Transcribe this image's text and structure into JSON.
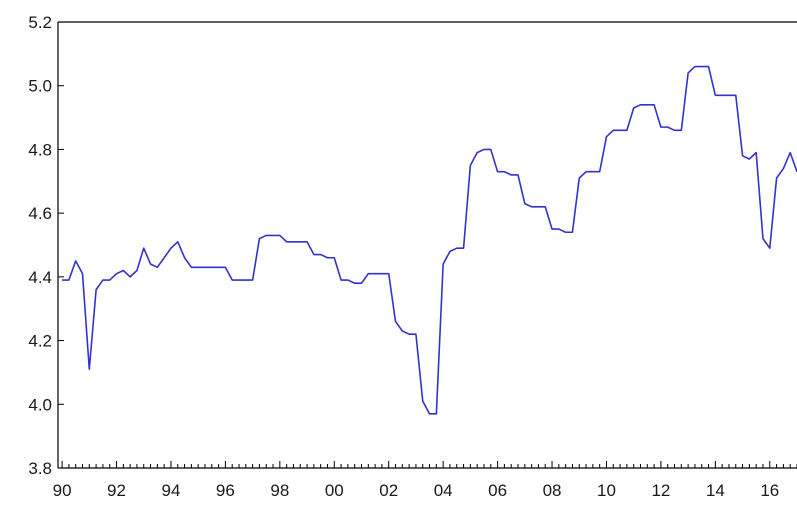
{
  "chart_data": {
    "type": "line",
    "title": "",
    "xlabel": "",
    "ylabel": "",
    "xlim": [
      1989.85,
      2017.0
    ],
    "ylim": [
      3.8,
      5.2
    ],
    "grid": false,
    "legend": "none",
    "line_color": "#3333cc",
    "x_tick_values": [
      1990,
      1992,
      1994,
      1996,
      1998,
      2000,
      2002,
      2004,
      2006,
      2008,
      2010,
      2012,
      2014,
      2016
    ],
    "x_tick_labels": [
      "90",
      "92",
      "94",
      "96",
      "98",
      "00",
      "02",
      "04",
      "06",
      "08",
      "10",
      "12",
      "14",
      "16"
    ],
    "y_ticks": [
      3.8,
      4.0,
      4.2,
      4.4,
      4.6,
      4.8,
      5.0,
      5.2
    ],
    "y_tick_labels": [
      "3.8",
      "4.0",
      "4.2",
      "4.4",
      "4.6",
      "4.8",
      "5.0",
      "5.2"
    ],
    "series": [
      {
        "x": [
          1990.0,
          1990.25,
          1990.5,
          1990.75,
          1991.0,
          1991.25,
          1991.5,
          1991.75,
          1992.0,
          1992.25,
          1992.5,
          1992.75,
          1993.0,
          1993.25,
          1993.5,
          1993.75,
          1994.0,
          1994.25,
          1994.5,
          1994.75,
          1995.0,
          1995.25,
          1995.5,
          1995.75,
          1996.0,
          1996.25,
          1996.5,
          1996.75,
          1997.0,
          1997.25,
          1997.5,
          1997.75,
          1998.0,
          1998.25,
          1998.5,
          1998.75,
          1999.0,
          1999.25,
          1999.5,
          1999.75,
          2000.0,
          2000.25,
          2000.5,
          2000.75,
          2001.0,
          2001.25,
          2001.5,
          2001.75,
          2002.0,
          2002.25,
          2002.5,
          2002.75,
          2003.0,
          2003.25,
          2003.5,
          2003.75,
          2004.0,
          2004.25,
          2004.5,
          2004.75,
          2005.0,
          2005.25,
          2005.5,
          2005.75,
          2006.0,
          2006.25,
          2006.5,
          2006.75,
          2007.0,
          2007.25,
          2007.5,
          2007.75,
          2008.0,
          2008.25,
          2008.5,
          2008.75,
          2009.0,
          2009.25,
          2009.5,
          2009.75,
          2010.0,
          2010.25,
          2010.5,
          2010.75,
          2011.0,
          2011.25,
          2011.5,
          2011.75,
          2012.0,
          2012.25,
          2012.5,
          2012.75,
          2013.0,
          2013.25,
          2013.5,
          2013.75,
          2014.0,
          2014.25,
          2014.5,
          2014.75,
          2015.0,
          2015.25,
          2015.5,
          2015.75,
          2016.0,
          2016.25,
          2016.5,
          2016.75,
          2017.0
        ],
        "y": [
          4.39,
          4.39,
          4.45,
          4.41,
          4.11,
          4.36,
          4.39,
          4.39,
          4.41,
          4.42,
          4.4,
          4.42,
          4.49,
          4.44,
          4.43,
          4.46,
          4.49,
          4.51,
          4.46,
          4.43,
          4.43,
          4.43,
          4.43,
          4.43,
          4.43,
          4.39,
          4.39,
          4.39,
          4.39,
          4.52,
          4.53,
          4.53,
          4.53,
          4.51,
          4.51,
          4.51,
          4.51,
          4.47,
          4.47,
          4.46,
          4.46,
          4.39,
          4.39,
          4.38,
          4.38,
          4.41,
          4.41,
          4.41,
          4.41,
          4.26,
          4.23,
          4.22,
          4.22,
          4.01,
          3.97,
          3.97,
          4.44,
          4.48,
          4.49,
          4.49,
          4.75,
          4.79,
          4.8,
          4.8,
          4.73,
          4.73,
          4.72,
          4.72,
          4.63,
          4.62,
          4.62,
          4.62,
          4.55,
          4.55,
          4.54,
          4.54,
          4.71,
          4.73,
          4.73,
          4.73,
          4.84,
          4.86,
          4.86,
          4.86,
          4.93,
          4.94,
          4.94,
          4.94,
          4.87,
          4.87,
          4.86,
          4.86,
          5.04,
          5.06,
          5.06,
          5.06,
          4.97,
          4.97,
          4.97,
          4.97,
          4.78,
          4.77,
          4.79,
          4.52,
          4.49,
          4.71,
          4.74,
          4.79,
          4.73
        ]
      }
    ]
  }
}
